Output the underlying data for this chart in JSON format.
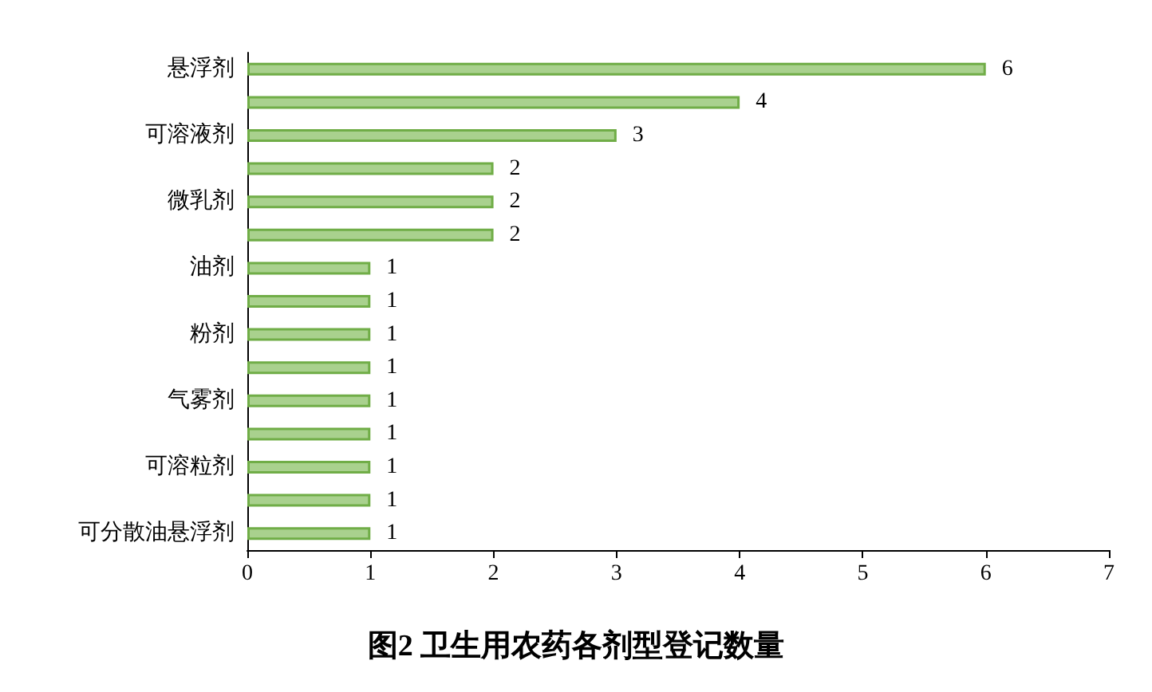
{
  "chart_data": {
    "type": "bar",
    "orientation": "horizontal",
    "title": "图2 卫生用农药各剂型登记数量",
    "categories": [
      "悬浮剂",
      null,
      "可溶液剂",
      null,
      "微乳剂",
      null,
      "油剂",
      null,
      "粉剂",
      null,
      "气雾剂",
      null,
      "可溶粒剂",
      null,
      "可分散油悬浮剂"
    ],
    "values": [
      6,
      4,
      3,
      2,
      2,
      2,
      1,
      1,
      1,
      1,
      1,
      1,
      1,
      1,
      1
    ],
    "color": "#a9d18e",
    "xlim": [
      0,
      7
    ],
    "xticks": [
      0,
      1,
      2,
      3,
      4,
      5,
      6,
      7
    ],
    "data_labels": true
  }
}
